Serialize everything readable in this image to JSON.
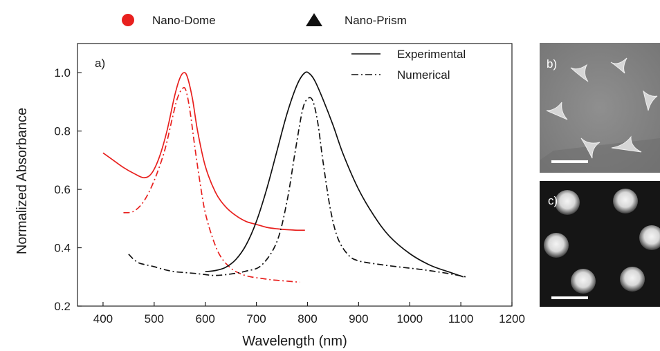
{
  "chart_data": {
    "type": "line",
    "xlabel": "Wavelength (nm)",
    "ylabel": "Normalized Absorbance",
    "xlim": [
      350,
      1200
    ],
    "ylim": [
      0.2,
      1.1
    ],
    "xticks": [
      400,
      500,
      600,
      700,
      800,
      900,
      1000,
      1100,
      1200
    ],
    "yticks": [
      0.2,
      0.4,
      0.6,
      0.8,
      1.0
    ],
    "xtick_labels": [
      "400",
      "500",
      "600",
      "700",
      "800",
      "900",
      "1000",
      "1100",
      "1200"
    ],
    "ytick_labels": [
      "0.2",
      "0.4",
      "0.6",
      "0.8",
      "1.0"
    ],
    "panel_label": "a)",
    "grid": false,
    "legend_top": [
      {
        "label": "Nano-Dome",
        "marker": "circle",
        "color": "#e8201e"
      },
      {
        "label": "Nano-Prism",
        "marker": "triangle",
        "color": "#111111"
      }
    ],
    "legend_inner": [
      {
        "label": "Experimental",
        "style": "solid"
      },
      {
        "label": "Numerical",
        "style": "dashdot"
      }
    ],
    "series": [
      {
        "color": "#e8201e",
        "style": "solid",
        "x": [
          400,
          420,
          440,
          460,
          480,
          495,
          510,
          525,
          540,
          550,
          558,
          565,
          575,
          585,
          600,
          620,
          640,
          660,
          680,
          700,
          720,
          740,
          760,
          780,
          795
        ],
        "y": [
          0.725,
          0.7,
          0.675,
          0.655,
          0.64,
          0.655,
          0.71,
          0.8,
          0.92,
          0.98,
          1.0,
          0.985,
          0.91,
          0.8,
          0.68,
          0.59,
          0.54,
          0.51,
          0.49,
          0.48,
          0.47,
          0.465,
          0.462,
          0.46,
          0.46
        ]
      },
      {
        "color": "#e8201e",
        "style": "dashdot",
        "x": [
          440,
          460,
          480,
          500,
          520,
          535,
          545,
          555,
          562,
          570,
          580,
          590,
          600,
          615,
          630,
          650,
          670,
          690,
          710,
          730,
          750,
          770,
          785
        ],
        "y": [
          0.52,
          0.525,
          0.56,
          0.63,
          0.73,
          0.84,
          0.91,
          0.945,
          0.94,
          0.87,
          0.74,
          0.62,
          0.52,
          0.43,
          0.37,
          0.33,
          0.31,
          0.3,
          0.295,
          0.29,
          0.287,
          0.284,
          0.282
        ]
      },
      {
        "color": "#111111",
        "style": "solid",
        "x": [
          600,
          620,
          640,
          660,
          680,
          700,
          720,
          740,
          760,
          780,
          795,
          805,
          815,
          830,
          850,
          870,
          900,
          930,
          960,
          1000,
          1040,
          1080,
          1105
        ],
        "y": [
          0.318,
          0.322,
          0.333,
          0.36,
          0.41,
          0.49,
          0.6,
          0.73,
          0.86,
          0.96,
          1.0,
          0.995,
          0.97,
          0.91,
          0.82,
          0.72,
          0.6,
          0.51,
          0.44,
          0.38,
          0.34,
          0.315,
          0.3
        ]
      },
      {
        "color": "#111111",
        "style": "dashdot",
        "x": [
          450,
          460,
          470,
          480,
          500,
          520,
          540,
          560,
          580,
          600,
          620,
          650,
          680,
          710,
          740,
          760,
          775,
          790,
          800,
          810,
          820,
          830,
          845,
          860,
          880,
          900,
          940,
          980,
          1020,
          1060,
          1090,
          1110
        ],
        "y": [
          0.378,
          0.36,
          0.348,
          0.343,
          0.335,
          0.325,
          0.318,
          0.315,
          0.312,
          0.308,
          0.305,
          0.31,
          0.32,
          0.34,
          0.42,
          0.56,
          0.72,
          0.87,
          0.91,
          0.905,
          0.83,
          0.7,
          0.53,
          0.43,
          0.375,
          0.355,
          0.343,
          0.334,
          0.326,
          0.316,
          0.307,
          0.3
        ]
      }
    ]
  },
  "insets": [
    {
      "label": "b)",
      "image": "SEM micrograph of nano-prism triangles"
    },
    {
      "label": "c)",
      "image": "SEM micrograph of nano-dome dots"
    }
  ]
}
